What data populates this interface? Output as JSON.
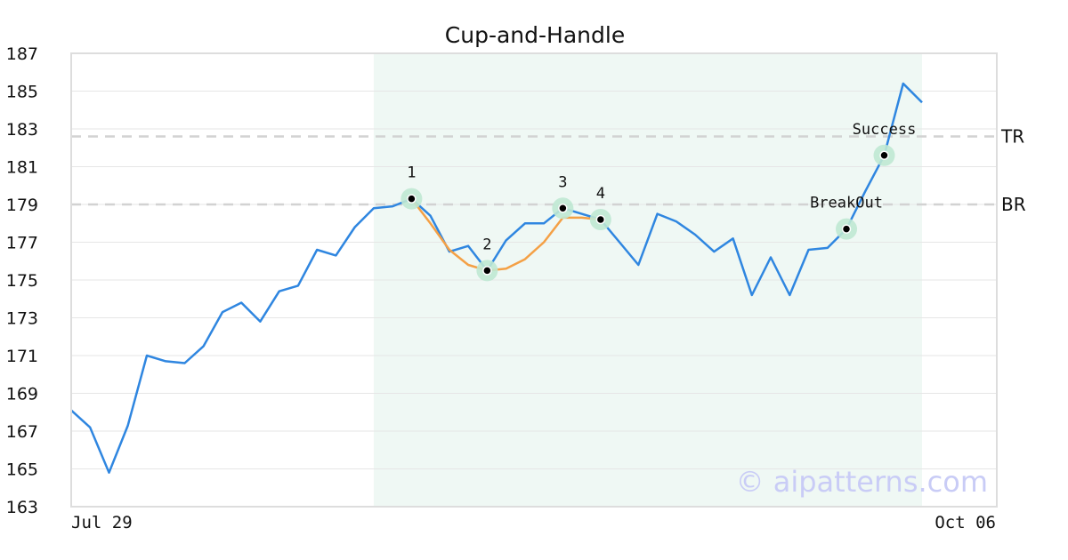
{
  "chart_data": {
    "type": "line",
    "title": "Cup-and-Handle",
    "xlabel": "",
    "ylabel": "",
    "ylim": [
      163,
      187
    ],
    "yticks": [
      163,
      165,
      167,
      169,
      171,
      173,
      175,
      177,
      179,
      181,
      183,
      185,
      187
    ],
    "x_labels": {
      "start": "Jul 29",
      "end": "Oct 06"
    },
    "grid": true,
    "series": [
      {
        "values": [
          168.1,
          167.2,
          164.8,
          167.3,
          171.0,
          170.7,
          170.6,
          171.5,
          173.3,
          173.8,
          172.8,
          174.4,
          174.7,
          176.6,
          176.3,
          177.8,
          178.8,
          178.9,
          179.3,
          178.4,
          176.5,
          176.8,
          175.5,
          177.1,
          178.0,
          178.0,
          178.8,
          178.5,
          178.2,
          177.0,
          175.8,
          178.5,
          178.1,
          177.4,
          176.5,
          177.2,
          174.2,
          176.2,
          174.2,
          176.6,
          176.7,
          177.7,
          179.7,
          181.6,
          185.4,
          184.4
        ],
        "color": "#2f86e0"
      }
    ],
    "pattern_curve": {
      "start_index": 18,
      "values": [
        179.3,
        178.0,
        176.6,
        175.8,
        175.5,
        175.6,
        176.1,
        177.0,
        178.3,
        178.3,
        178.2
      ],
      "color": "#f4a045"
    },
    "highlight_region": {
      "start_index": 16,
      "end_index": 45,
      "color": "#e6f4ee"
    },
    "horizontal_lines": [
      {
        "label": "TR",
        "value": 182.6
      },
      {
        "label": "BR",
        "value": 179.0
      }
    ],
    "points": [
      {
        "label": "1",
        "index": 18,
        "value": 179.3
      },
      {
        "label": "2",
        "index": 22,
        "value": 175.5
      },
      {
        "label": "3",
        "index": 26,
        "value": 178.8
      },
      {
        "label": "4",
        "index": 28,
        "value": 178.2
      },
      {
        "label": "BreakOut",
        "index": 41,
        "value": 177.7
      },
      {
        "label": "Success",
        "index": 43,
        "value": 181.6
      }
    ],
    "watermark": "© aipatterns.com"
  }
}
